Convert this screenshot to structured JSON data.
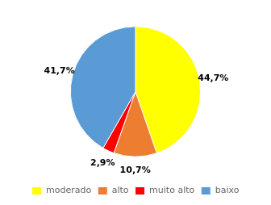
{
  "chart_data": {
    "type": "pie",
    "categories": [
      "moderado",
      "alto",
      "muito alto",
      "baixo"
    ],
    "values": [
      44.7,
      10.7,
      2.9,
      41.7
    ],
    "value_labels": [
      "44,7%",
      "10,7%",
      "2,9%",
      "41,7%"
    ],
    "colors": [
      "#ffff00",
      "#ed7d31",
      "#ff0000",
      "#5b9bd5"
    ],
    "data_labels": true,
    "legend": "bottom"
  }
}
